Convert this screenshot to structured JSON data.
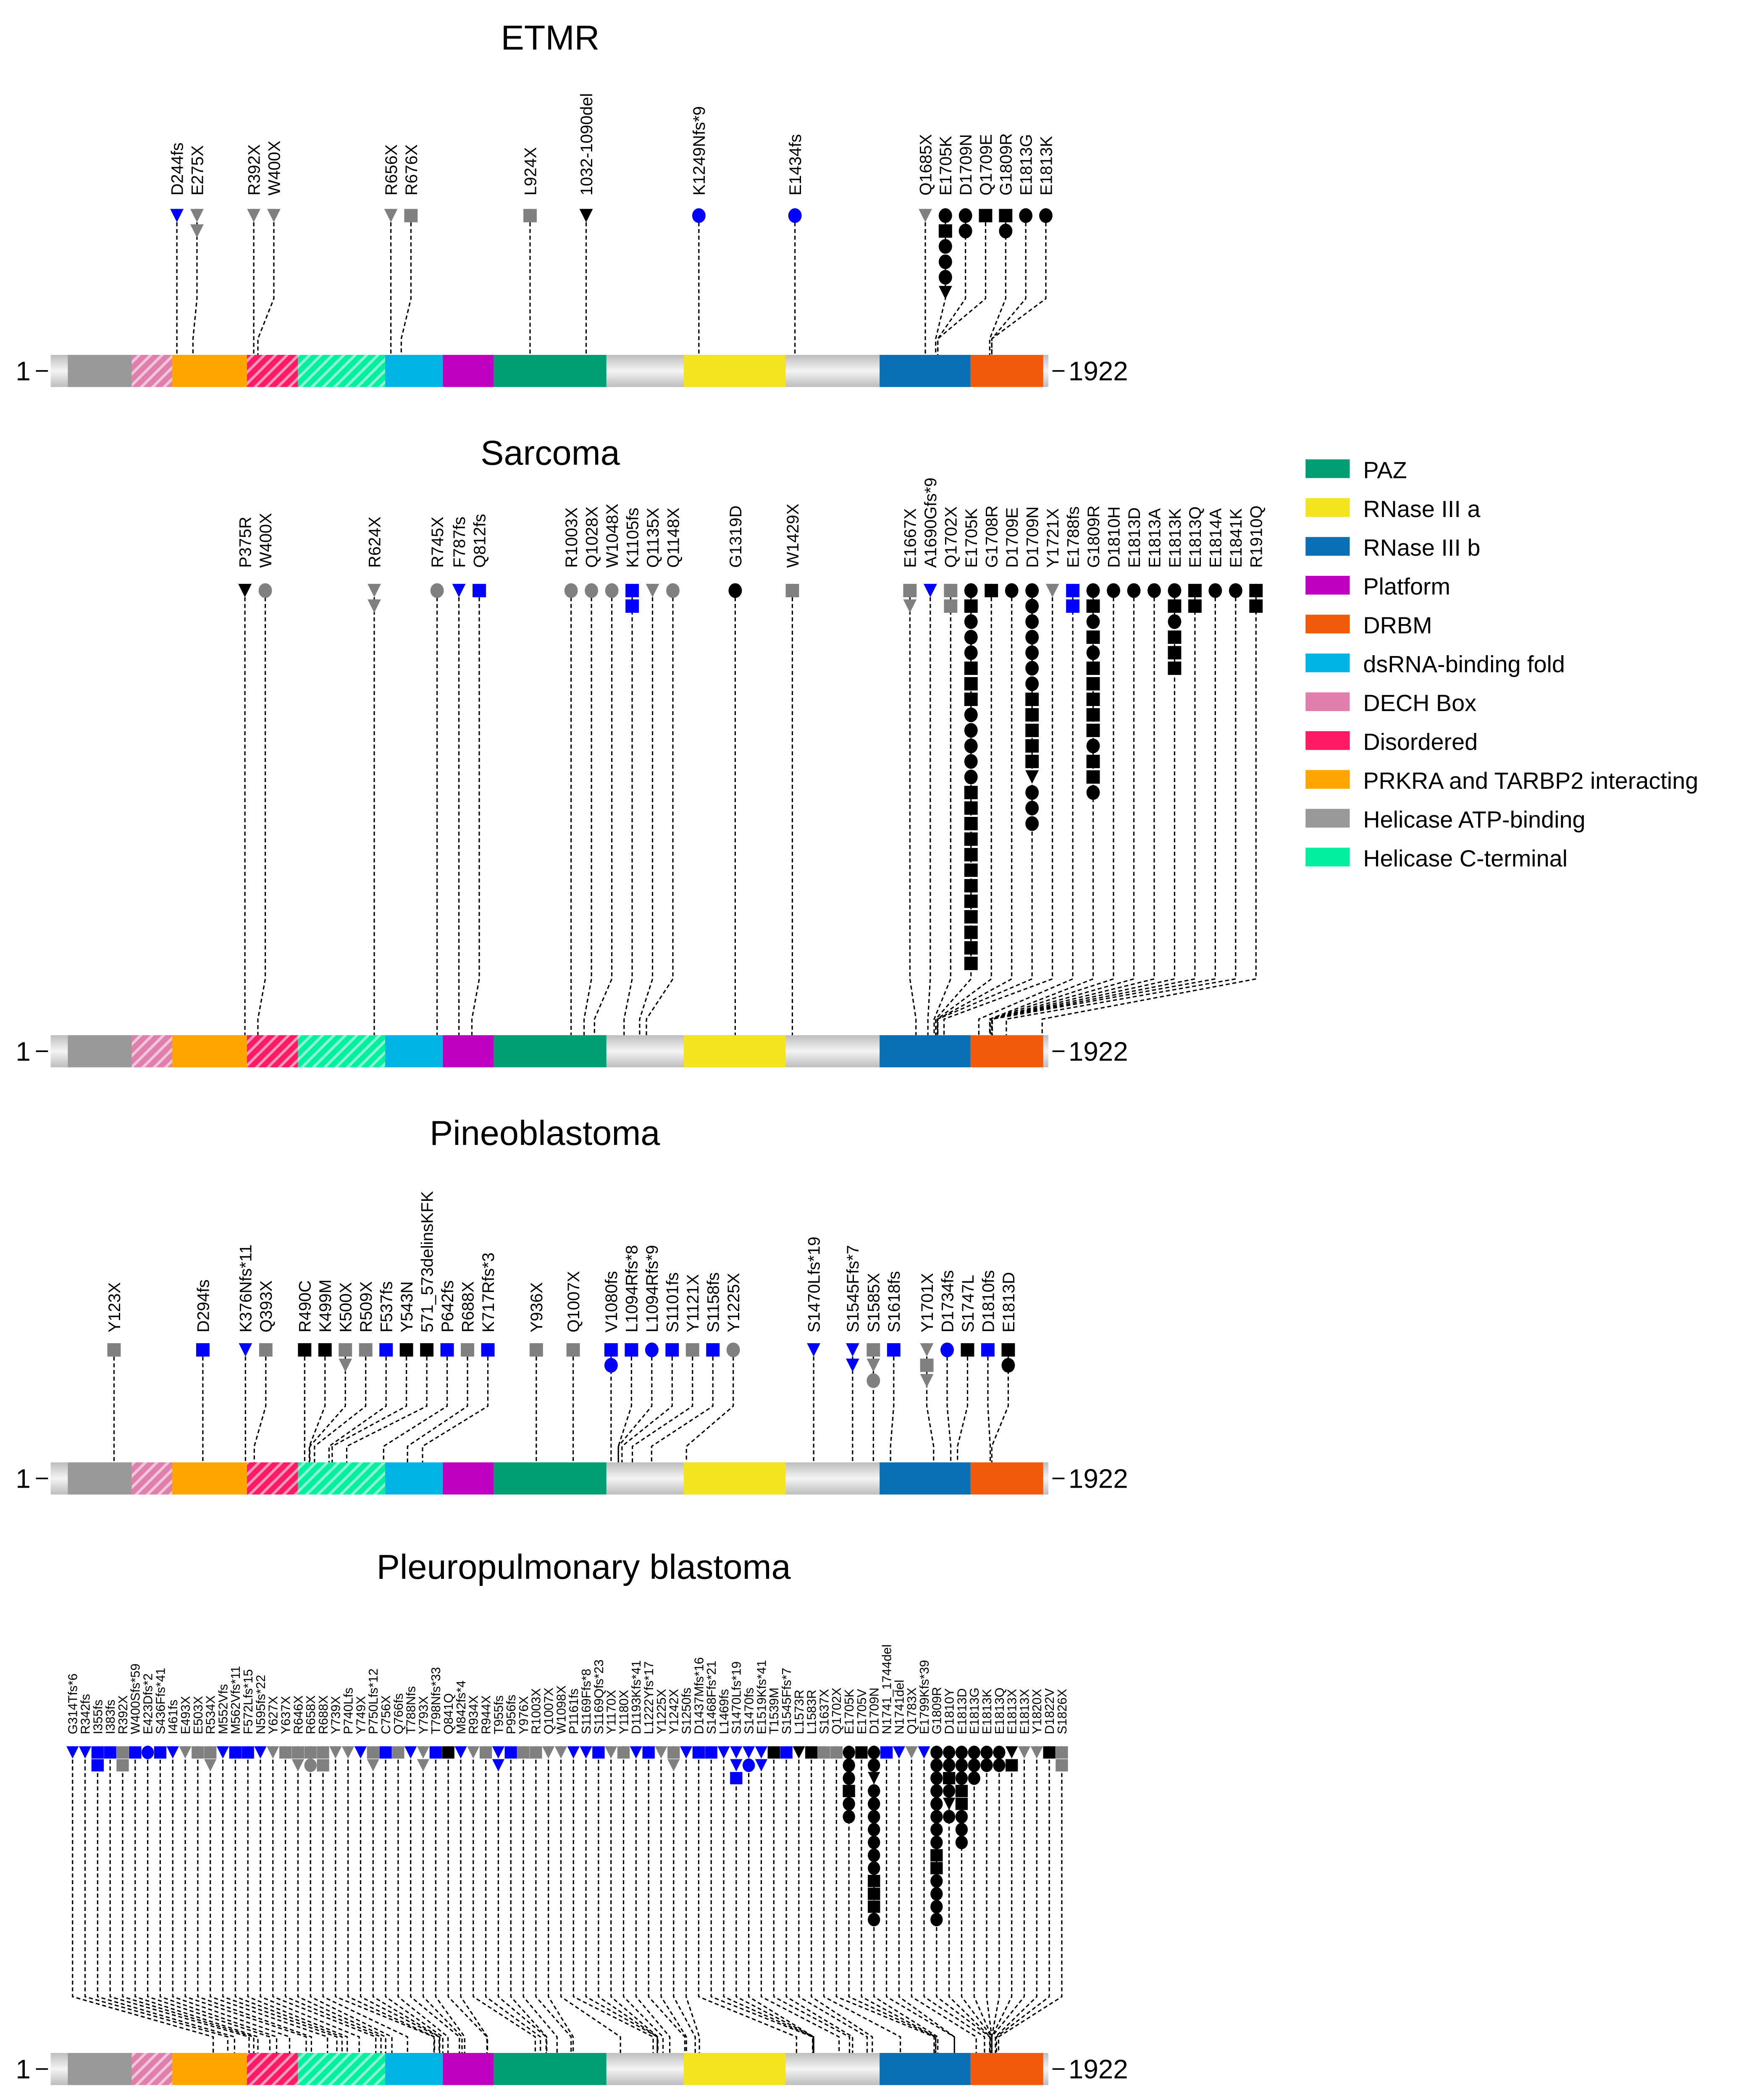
{
  "chart_data": {
    "type": "lollipop",
    "protein_length": 1922,
    "axis_start_label": "1",
    "axis_end_label": "1922",
    "marker_legend": {
      "shapes": {
        "s": "square",
        "c": "circle",
        "t": "triangle"
      },
      "colors": {
        "k": "#000000",
        "b": "#0000ff",
        "g": "#808080"
      }
    },
    "domains": [
      {
        "name": "Helicase ATP-binding",
        "start": 34,
        "end": 157,
        "color": "#999999",
        "hatch": false
      },
      {
        "name": "DECH Box",
        "start": 157,
        "end": 235,
        "color": "#e07fac",
        "hatch": true
      },
      {
        "name": "PRKRA and TARBP2 interacting",
        "start": 235,
        "end": 379,
        "color": "#ffa500",
        "hatch": false
      },
      {
        "name": "Disordered",
        "start": 379,
        "end": 477,
        "color": "#ff1a66",
        "hatch": true
      },
      {
        "name": "Helicase C-terminal",
        "start": 477,
        "end": 645,
        "color": "#00f0a0",
        "hatch": true
      },
      {
        "name": "dsRNA-binding fold",
        "start": 645,
        "end": 756,
        "color": "#00b4e6",
        "hatch": false
      },
      {
        "name": "Platform",
        "start": 756,
        "end": 854,
        "color": "#c000c0",
        "hatch": false
      },
      {
        "name": "PAZ",
        "start": 854,
        "end": 1071,
        "color": "#009e73",
        "hatch": false
      },
      {
        "name": "RNase III a",
        "start": 1220,
        "end": 1416,
        "color": "#f4e31f",
        "hatch": false
      },
      {
        "name": "RNase III b",
        "start": 1597,
        "end": 1772,
        "color": "#0a70b5",
        "hatch": false
      },
      {
        "name": "DRBM",
        "start": 1772,
        "end": 1912,
        "color": "#f05a0a",
        "hatch": false
      }
    ],
    "legend": [
      "PAZ",
      "RNase III a",
      "RNase III b",
      "Platform",
      "DRBM",
      "dsRNA-binding fold",
      "DECH Box",
      "Disordered",
      "PRKRA and TARBP2 interacting",
      "Helicase ATP-binding",
      "Helicase C-terminal"
    ],
    "panels": [
      {
        "title": "ETMR",
        "mutations": [
          {
            "label": "D244fs",
            "pos": 244,
            "m": "bt"
          },
          {
            "label": "E275X",
            "pos": 275,
            "m": "gt gt"
          },
          {
            "label": "R392X",
            "pos": 392,
            "m": "gt"
          },
          {
            "label": "W400X",
            "pos": 400,
            "m": "gt"
          },
          {
            "label": "R656X",
            "pos": 656,
            "m": "gt"
          },
          {
            "label": "R676X",
            "pos": 676,
            "m": "gs"
          },
          {
            "label": "L924X",
            "pos": 924,
            "m": "gs"
          },
          {
            "label": "1032-1090del",
            "pos": 1032,
            "m": "kt"
          },
          {
            "label": "K1249Nfs*9",
            "pos": 1249,
            "m": "bc"
          },
          {
            "label": "E1434fs",
            "pos": 1434,
            "m": "bc"
          },
          {
            "label": "Q1685X",
            "pos": 1685,
            "m": "gt"
          },
          {
            "label": "E1705K",
            "pos": 1705,
            "m": "kc ks kc kc kc kt"
          },
          {
            "label": "D1709N",
            "pos": 1709,
            "m": "kc kc"
          },
          {
            "label": "Q1709E",
            "pos": 1709,
            "m": "ks"
          },
          {
            "label": "G1809R",
            "pos": 1809,
            "m": "ks kc"
          },
          {
            "label": "E1813G",
            "pos": 1813,
            "m": "kc"
          },
          {
            "label": "E1813K",
            "pos": 1813,
            "m": "kc"
          }
        ]
      },
      {
        "title": "Sarcoma",
        "mutations": [
          {
            "label": "P375R",
            "pos": 375,
            "m": "kt"
          },
          {
            "label": "W400X",
            "pos": 400,
            "m": "gc"
          },
          {
            "label": "R624X",
            "pos": 624,
            "m": "gt gt"
          },
          {
            "label": "R745X",
            "pos": 745,
            "m": "gc"
          },
          {
            "label": "F787fs",
            "pos": 787,
            "m": "bt"
          },
          {
            "label": "Q812fs",
            "pos": 812,
            "m": "bs"
          },
          {
            "label": "R1003X",
            "pos": 1003,
            "m": "gc"
          },
          {
            "label": "Q1028X",
            "pos": 1028,
            "m": "gc"
          },
          {
            "label": "W1048X",
            "pos": 1048,
            "m": "gc"
          },
          {
            "label": "K1105fs",
            "pos": 1105,
            "m": "bs bs"
          },
          {
            "label": "Q1135X",
            "pos": 1135,
            "m": "gt"
          },
          {
            "label": "Q1148X",
            "pos": 1148,
            "m": "gc"
          },
          {
            "label": "G1319D",
            "pos": 1319,
            "m": "kc"
          },
          {
            "label": "W1429X",
            "pos": 1429,
            "m": "gs"
          },
          {
            "label": "E1667X",
            "pos": 1667,
            "m": "gs gt"
          },
          {
            "label": "A1690Gfs*9",
            "pos": 1690,
            "m": "bt"
          },
          {
            "label": "Q1702X",
            "pos": 1702,
            "m": "gs gs"
          },
          {
            "label": "E1705K",
            "pos": 1705,
            "m": "kc ks kc kc kc ks ks ks kc kc kc kc kc ks ks ks ks ks ks ks ks ks ks ks ks"
          },
          {
            "label": "G1708R",
            "pos": 1708,
            "m": "ks"
          },
          {
            "label": "D1709E",
            "pos": 1709,
            "m": "kc"
          },
          {
            "label": "D1709N",
            "pos": 1709,
            "m": "kc kc kc kc kc kc kc ks ks ks ks ks kt kc kc kc"
          },
          {
            "label": "Y1721X",
            "pos": 1721,
            "m": "gt"
          },
          {
            "label": "E1788fs",
            "pos": 1788,
            "m": "bs bs"
          },
          {
            "label": "G1809R",
            "pos": 1809,
            "m": "kc ks kc ks kc ks ks ks ks ks kc ks ks kc"
          },
          {
            "label": "D1810H",
            "pos": 1810,
            "m": "kc"
          },
          {
            "label": "E1813D",
            "pos": 1813,
            "m": "kc"
          },
          {
            "label": "E1813A",
            "pos": 1813,
            "m": "kc"
          },
          {
            "label": "E1813K",
            "pos": 1813,
            "m": "kc ks kc ks ks ks"
          },
          {
            "label": "E1813Q",
            "pos": 1813,
            "m": "ks ks"
          },
          {
            "label": "E1814A",
            "pos": 1814,
            "m": "kc"
          },
          {
            "label": "E1841K",
            "pos": 1841,
            "m": "kc"
          },
          {
            "label": "R1910Q",
            "pos": 1910,
            "m": "ks ks"
          }
        ]
      },
      {
        "title": "Pineoblastoma",
        "mutations": [
          {
            "label": "Y123X",
            "pos": 123,
            "m": "gs"
          },
          {
            "label": "D294fs",
            "pos": 294,
            "m": "bs"
          },
          {
            "label": "K376Nfs*11",
            "pos": 376,
            "m": "bt"
          },
          {
            "label": "Q393X",
            "pos": 393,
            "m": "gs"
          },
          {
            "label": "R490C",
            "pos": 490,
            "m": "ks"
          },
          {
            "label": "K499M",
            "pos": 499,
            "m": "ks"
          },
          {
            "label": "K500X",
            "pos": 500,
            "m": "gs gt"
          },
          {
            "label": "R509X",
            "pos": 509,
            "m": "gs"
          },
          {
            "label": "F537fs",
            "pos": 537,
            "m": "bs"
          },
          {
            "label": "Y543N",
            "pos": 543,
            "m": "ks"
          },
          {
            "label": "571_573delinsKFK",
            "pos": 571,
            "m": "ks"
          },
          {
            "label": "P642fs",
            "pos": 642,
            "m": "bs"
          },
          {
            "label": "R688X",
            "pos": 688,
            "m": "gs"
          },
          {
            "label": "K717Rfs*3",
            "pos": 717,
            "m": "bs"
          },
          {
            "label": "Y936X",
            "pos": 936,
            "m": "gs"
          },
          {
            "label": "Q1007X",
            "pos": 1007,
            "m": "gs"
          },
          {
            "label": "V1080fs",
            "pos": 1080,
            "m": "bs bc"
          },
          {
            "label": "L1094Rfs*8",
            "pos": 1094,
            "m": "bs"
          },
          {
            "label": "L1094Rfs*9",
            "pos": 1094,
            "m": "bc"
          },
          {
            "label": "S1101fs",
            "pos": 1101,
            "m": "bs"
          },
          {
            "label": "Y1121X",
            "pos": 1121,
            "m": "gs"
          },
          {
            "label": "S1158fs",
            "pos": 1158,
            "m": "bs"
          },
          {
            "label": "Y1225X",
            "pos": 1225,
            "m": "gc"
          },
          {
            "label": "S1470Lfs*19",
            "pos": 1470,
            "m": "bt"
          },
          {
            "label": "S1545Ffs*7",
            "pos": 1545,
            "m": "bt bt"
          },
          {
            "label": "S1585X",
            "pos": 1585,
            "m": "gs gt gc"
          },
          {
            "label": "S1618fs",
            "pos": 1618,
            "m": "bs"
          },
          {
            "label": "Y1701X",
            "pos": 1701,
            "m": "gt gs gt"
          },
          {
            "label": "D1734fs",
            "pos": 1734,
            "m": "bc"
          },
          {
            "label": "S1747L",
            "pos": 1747,
            "m": "ks"
          },
          {
            "label": "D1810fs",
            "pos": 1810,
            "m": "bs"
          },
          {
            "label": "E1813D",
            "pos": 1813,
            "m": "ks kc"
          }
        ]
      },
      {
        "title": "Pleuropulmonary blastoma",
        "mutations": [
          {
            "label": "G314Tfs*6",
            "pos": 314,
            "m": "bt"
          },
          {
            "label": "R342fs",
            "pos": 342,
            "m": "bt"
          },
          {
            "label": "I355fs",
            "pos": 355,
            "m": "bs bs"
          },
          {
            "label": "I383fs",
            "pos": 383,
            "m": "bs"
          },
          {
            "label": "R392X",
            "pos": 392,
            "m": "gs gs"
          },
          {
            "label": "W400Sfs*59",
            "pos": 400,
            "m": "bs"
          },
          {
            "label": "E423Dfs*2",
            "pos": 423,
            "m": "bc"
          },
          {
            "label": "S436Ffs*41",
            "pos": 436,
            "m": "bs"
          },
          {
            "label": "I461fs",
            "pos": 461,
            "m": "bt"
          },
          {
            "label": "E493X",
            "pos": 493,
            "m": "gt"
          },
          {
            "label": "E503X",
            "pos": 503,
            "m": "gs"
          },
          {
            "label": "R534X",
            "pos": 534,
            "m": "gs gt"
          },
          {
            "label": "M552Vfs",
            "pos": 552,
            "m": "bt"
          },
          {
            "label": "M562Vfs*11",
            "pos": 562,
            "m": "bs"
          },
          {
            "label": "F572Lfs*15",
            "pos": 572,
            "m": "bs"
          },
          {
            "label": "N595fs*22",
            "pos": 595,
            "m": "bt"
          },
          {
            "label": "Y627X",
            "pos": 627,
            "m": "gt"
          },
          {
            "label": "Y637X",
            "pos": 637,
            "m": "gs"
          },
          {
            "label": "R646X",
            "pos": 646,
            "m": "gs gt"
          },
          {
            "label": "R658X",
            "pos": 658,
            "m": "gs gc"
          },
          {
            "label": "R688X",
            "pos": 688,
            "m": "gs gs"
          },
          {
            "label": "Y739X",
            "pos": 739,
            "m": "gt"
          },
          {
            "label": "P740Lfs",
            "pos": 740,
            "m": "gt"
          },
          {
            "label": "Y749X",
            "pos": 749,
            "m": "bt"
          },
          {
            "label": "P750Lfs*12",
            "pos": 750,
            "m": "gs gt"
          },
          {
            "label": "C756X",
            "pos": 756,
            "m": "bs"
          },
          {
            "label": "Q766fs",
            "pos": 766,
            "m": "gs"
          },
          {
            "label": "T788Nfs",
            "pos": 788,
            "m": "bt"
          },
          {
            "label": "Y793X",
            "pos": 793,
            "m": "gt gt"
          },
          {
            "label": "T798Nfs*33",
            "pos": 798,
            "m": "bs"
          },
          {
            "label": "Q841Q",
            "pos": 841,
            "m": "ks"
          },
          {
            "label": "M842fs*4",
            "pos": 842,
            "m": "bt"
          },
          {
            "label": "R934X",
            "pos": 934,
            "m": "gt"
          },
          {
            "label": "R944X",
            "pos": 944,
            "m": "gs"
          },
          {
            "label": "T955fs",
            "pos": 955,
            "m": "bt bt"
          },
          {
            "label": "P956fs",
            "pos": 956,
            "m": "bs"
          },
          {
            "label": "Y976X",
            "pos": 976,
            "m": "gs"
          },
          {
            "label": "R1003X",
            "pos": 1003,
            "m": "gs"
          },
          {
            "label": "Q1007X",
            "pos": 1007,
            "m": "gt"
          },
          {
            "label": "W1098X",
            "pos": 1098,
            "m": "gt"
          },
          {
            "label": "P1161fs",
            "pos": 1161,
            "m": "bt"
          },
          {
            "label": "S1169Ffs*8",
            "pos": 1169,
            "m": "bt"
          },
          {
            "label": "S1169Qfs*23",
            "pos": 1169,
            "m": "bs"
          },
          {
            "label": "Y1170X",
            "pos": 1170,
            "m": "gt"
          },
          {
            "label": "Y1180X",
            "pos": 1180,
            "m": "gs"
          },
          {
            "label": "D1193Kfs*41",
            "pos": 1193,
            "m": "bt"
          },
          {
            "label": "L1222Yfs*17",
            "pos": 1222,
            "m": "bs"
          },
          {
            "label": "Y1225X",
            "pos": 1225,
            "m": "gt"
          },
          {
            "label": "Y1242X",
            "pos": 1242,
            "m": "gs gt"
          },
          {
            "label": "S1250fs",
            "pos": 1250,
            "m": "bt"
          },
          {
            "label": "D1437Mfs*16",
            "pos": 1437,
            "m": "bs"
          },
          {
            "label": "S1468Ffs*21",
            "pos": 1468,
            "m": "bs"
          },
          {
            "label": "L1469fs",
            "pos": 1469,
            "m": "bt"
          },
          {
            "label": "S1470Lfs*19",
            "pos": 1470,
            "m": "bt bt bs"
          },
          {
            "label": "S1470fs",
            "pos": 1470,
            "m": "bt bc"
          },
          {
            "label": "E1519Kfs*41",
            "pos": 1519,
            "m": "bt bt"
          },
          {
            "label": "T1539M",
            "pos": 1539,
            "m": "ks"
          },
          {
            "label": "S1545Ffs*7",
            "pos": 1545,
            "m": "bs"
          },
          {
            "label": "L1573R",
            "pos": 1573,
            "m": "kt"
          },
          {
            "label": "L1583R",
            "pos": 1583,
            "m": "ks"
          },
          {
            "label": "S1637X",
            "pos": 1637,
            "m": "gs"
          },
          {
            "label": "Q1702X",
            "pos": 1702,
            "m": "gs"
          },
          {
            "label": "E1705K",
            "pos": 1705,
            "m": "kc kc kc ks kc kc"
          },
          {
            "label": "E1705V",
            "pos": 1705,
            "m": "ks"
          },
          {
            "label": "D1709N",
            "pos": 1709,
            "m": "kc kc kt kc kc kc kc kc kc kc ks ks ks kc"
          },
          {
            "label": "N1741_1744del",
            "pos": 1741,
            "m": "bs"
          },
          {
            "label": "N1741del",
            "pos": 1741,
            "m": "bt"
          },
          {
            "label": "Q1783X",
            "pos": 1783,
            "m": "gt"
          },
          {
            "label": "E1799Kfs*39",
            "pos": 1799,
            "m": "bt"
          },
          {
            "label": "G1809R",
            "pos": 1809,
            "m": "kc kc kc kc kc kc kc kc ks ks kc kc kc kc"
          },
          {
            "label": "D1810Y",
            "pos": 1810,
            "m": "kc kc ks kc kt kc"
          },
          {
            "label": "E1813D",
            "pos": 1813,
            "m": "kc kc kc ks ks kc kc kc"
          },
          {
            "label": "E1813G",
            "pos": 1813,
            "m": "kc kc kc"
          },
          {
            "label": "E1813K",
            "pos": 1813,
            "m": "kc kc"
          },
          {
            "label": "E1813Q",
            "pos": 1813,
            "m": "kc kc"
          },
          {
            "label": "E1813X",
            "pos": 1813,
            "m": "kt ks"
          },
          {
            "label": "E1813X",
            "pos": 1813,
            "m": "gt"
          },
          {
            "label": "Y1820X",
            "pos": 1820,
            "m": "gt"
          },
          {
            "label": "D1822V",
            "pos": 1822,
            "m": "ks"
          },
          {
            "label": "S1826X",
            "pos": 1826,
            "m": "gs gs"
          }
        ]
      }
    ]
  }
}
